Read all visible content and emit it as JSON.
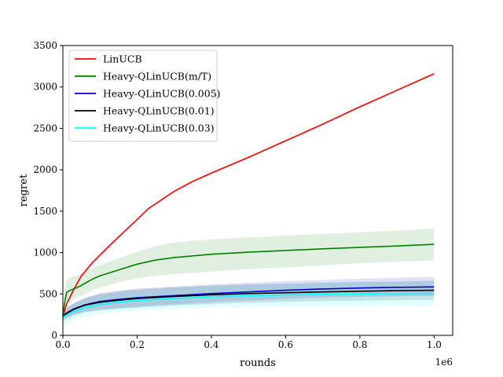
{
  "chart_data": {
    "type": "line",
    "xlabel": "rounds",
    "ylabel": "regret",
    "x_offset_label": "1e6",
    "xlim": [
      0,
      1050000
    ],
    "ylim": [
      0,
      3500
    ],
    "x_ticks": [
      0,
      200000,
      400000,
      600000,
      800000,
      1000000
    ],
    "x_tick_labels": [
      "0.0",
      "0.2",
      "0.4",
      "0.6",
      "0.8",
      "1.0"
    ],
    "y_ticks": [
      0,
      500,
      1000,
      1500,
      2000,
      2500,
      3000,
      3500
    ],
    "y_tick_labels": [
      "0",
      "500",
      "1000",
      "1500",
      "2000",
      "2500",
      "3000",
      "3500"
    ],
    "grid": false,
    "legend_position": "top-left",
    "series": [
      {
        "name": "LinUCB",
        "color": "#ff0000",
        "x": [
          0,
          10000,
          30000,
          50000,
          80000,
          120000,
          160000,
          200000,
          230000,
          270000,
          300000,
          350000,
          400000,
          500000,
          600000,
          700000,
          800000,
          900000,
          1000000
        ],
        "y": [
          220,
          380,
          560,
          720,
          880,
          1060,
          1230,
          1400,
          1530,
          1650,
          1740,
          1860,
          1960,
          2150,
          2350,
          2550,
          2760,
          2960,
          3160
        ],
        "lower": [
          210,
          370,
          550,
          710,
          870,
          1050,
          1220,
          1390,
          1520,
          1640,
          1730,
          1850,
          1950,
          2140,
          2340,
          2540,
          2750,
          2950,
          3150
        ],
        "upper": [
          230,
          390,
          570,
          730,
          890,
          1070,
          1240,
          1410,
          1540,
          1660,
          1750,
          1870,
          1970,
          2160,
          2360,
          2560,
          2770,
          2970,
          3170
        ]
      },
      {
        "name": "Heavy-QLinUCB(m/T)",
        "color": "#008000",
        "x": [
          0,
          5000,
          10000,
          20000,
          40000,
          60000,
          80000,
          100000,
          150000,
          200000,
          250000,
          300000,
          400000,
          500000,
          600000,
          700000,
          800000,
          900000,
          1000000
        ],
        "y": [
          230,
          400,
          520,
          545,
          580,
          630,
          680,
          720,
          790,
          860,
          910,
          940,
          980,
          1005,
          1025,
          1045,
          1063,
          1080,
          1100
        ],
        "lower": [
          200,
          300,
          380,
          420,
          460,
          500,
          540,
          580,
          640,
          690,
          720,
          740,
          770,
          800,
          820,
          845,
          870,
          890,
          905
        ],
        "upper": [
          260,
          560,
          670,
          700,
          730,
          770,
          810,
          850,
          930,
          1010,
          1080,
          1120,
          1160,
          1185,
          1205,
          1225,
          1245,
          1265,
          1290
        ]
      },
      {
        "name": "Heavy-QLinUCB(0.005)",
        "color": "#0000cc",
        "x": [
          0,
          10000,
          30000,
          60000,
          100000,
          150000,
          200000,
          300000,
          400000,
          500000,
          600000,
          700000,
          800000,
          900000,
          1000000
        ],
        "y": [
          230,
          270,
          320,
          370,
          410,
          435,
          455,
          480,
          505,
          525,
          545,
          560,
          572,
          580,
          585
        ],
        "lower": [
          180,
          210,
          250,
          285,
          310,
          330,
          345,
          375,
          400,
          420,
          440,
          455,
          465,
          470,
          475
        ],
        "upper": [
          280,
          330,
          390,
          455,
          510,
          540,
          565,
          590,
          615,
          635,
          655,
          670,
          685,
          695,
          705
        ]
      },
      {
        "name": "Heavy-QLinUCB(0.01)",
        "color": "#000000",
        "x": [
          0,
          10000,
          30000,
          60000,
          100000,
          150000,
          200000,
          300000,
          400000,
          500000,
          600000,
          700000,
          800000,
          900000,
          1000000
        ],
        "y": [
          230,
          265,
          315,
          365,
          400,
          425,
          445,
          470,
          490,
          505,
          515,
          525,
          533,
          540,
          545
        ],
        "lower": [
          170,
          200,
          245,
          280,
          300,
          320,
          335,
          360,
          380,
          395,
          405,
          415,
          420,
          425,
          430
        ],
        "upper": [
          290,
          330,
          385,
          450,
          500,
          530,
          555,
          580,
          600,
          615,
          625,
          635,
          645,
          650,
          660
        ]
      },
      {
        "name": "Heavy-QLinUCB(0.03)",
        "color": "#00ffff",
        "x": [
          0,
          10000,
          30000,
          60000,
          100000,
          150000,
          200000,
          300000,
          400000,
          500000,
          600000,
          700000,
          800000,
          900000,
          1000000
        ],
        "y": [
          220,
          245,
          290,
          335,
          375,
          400,
          420,
          445,
          465,
          478,
          488,
          495,
          500,
          504,
          508
        ],
        "lower": [
          80,
          140,
          190,
          230,
          265,
          285,
          300,
          320,
          335,
          345,
          350,
          355,
          355,
          357,
          360
        ],
        "upper": [
          360,
          350,
          390,
          440,
          485,
          515,
          540,
          570,
          595,
          610,
          625,
          635,
          645,
          650,
          655
        ]
      }
    ]
  }
}
